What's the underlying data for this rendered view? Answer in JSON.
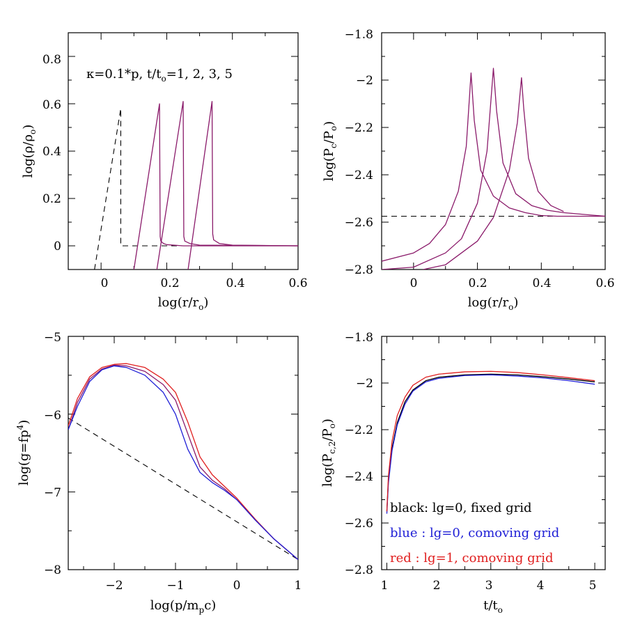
{
  "colors": {
    "black": "#000000",
    "blue": "#1f1fd6",
    "red": "#e01f1f",
    "purple": "#8a1a6a",
    "gray": "#555555"
  },
  "panels": {
    "top_left": {
      "xlabel": "log(r/r",
      "xlabel_sub": "o",
      "xlabel_end": ")",
      "ylabel": "log(ρ/ρ",
      "ylabel_sub": "o",
      "ylabel_end": ")",
      "annotation": "κ=0.1*p,  t/t",
      "annotation_sub": "o",
      "annotation_end": "=1,  2,  3,  5",
      "xticks": [
        "0",
        "0.2",
        "0.4",
        "0.6"
      ],
      "yticks": [
        "0",
        "0.2",
        "0.4",
        "0.6",
        "0.8"
      ]
    },
    "top_right": {
      "xlabel": "log(r/r",
      "xlabel_sub": "o",
      "xlabel_end": ")",
      "ylabel": "log(P",
      "ylabel_sub": "c",
      "ylabel_mid": "/P",
      "ylabel_sub2": "o",
      "ylabel_end": ")",
      "xticks": [
        "0",
        "0.2",
        "0.4",
        "0.6"
      ],
      "yticks": [
        "−2.8",
        "−2.6",
        "−2.4",
        "−2.2",
        "−2",
        "−1.8"
      ]
    },
    "bottom_left": {
      "xlabel": "log(p/m",
      "xlabel_sub": "p",
      "xlabel_end": "c)",
      "ylabel": "log(g=fp",
      "ylabel_sup": "4",
      "ylabel_end": ")",
      "xticks": [
        "−2",
        "−1",
        "0",
        "1"
      ],
      "yticks": [
        "−8",
        "−7",
        "−6",
        "−5"
      ]
    },
    "bottom_right": {
      "xlabel": "t/t",
      "xlabel_sub": "o",
      "ylabel": "log(P",
      "ylabel_sub": "c,2",
      "ylabel_mid": "/P",
      "ylabel_sub2": "o",
      "ylabel_end": ")",
      "xticks": [
        "1",
        "2",
        "3",
        "4",
        "5"
      ],
      "yticks": [
        "−2.8",
        "−2.6",
        "−2.4",
        "−2.2",
        "−2",
        "−1.8"
      ],
      "legend": [
        {
          "text": "black:  lg=0,  fixed grid",
          "color": "#000000"
        },
        {
          "text": "blue  :  lg=0,  comoving grid",
          "color": "#1f1fd6"
        },
        {
          "text": "red   :  lg=1,  comoving grid",
          "color": "#e01f1f"
        }
      ]
    }
  },
  "chart_data": [
    {
      "type": "line",
      "xlabel": "log(r/ro)",
      "ylabel": "log(ρ/ρo)",
      "xlim": [
        -0.1,
        0.6
      ],
      "ylim": [
        -0.1,
        0.9
      ],
      "annotation": "κ=0.1*p, t/to=1, 2, 3, 5",
      "series": [
        {
          "style": "dashed",
          "color": "black",
          "x": [
            -0.02,
            0.06,
            0.06,
            0.6
          ],
          "y": [
            -0.1,
            0.58,
            0.0,
            0.0
          ]
        },
        {
          "x": [
            0.1,
            0.178,
            0.18,
            0.182,
            0.19,
            0.2,
            0.25,
            0.6
          ],
          "y": [
            -0.1,
            0.6,
            0.04,
            0.02,
            0.01,
            0.005,
            0.0,
            0.0
          ]
        },
        {
          "x": [
            0.17,
            0.25,
            0.252,
            0.255,
            0.27,
            0.3,
            0.6
          ],
          "y": [
            -0.1,
            0.61,
            0.04,
            0.02,
            0.01,
            0.003,
            0.0
          ]
        },
        {
          "x": [
            0.265,
            0.338,
            0.34,
            0.343,
            0.36,
            0.4,
            0.6
          ],
          "y": [
            -0.1,
            0.61,
            0.05,
            0.025,
            0.01,
            0.003,
            0.0
          ]
        }
      ]
    },
    {
      "type": "line",
      "xlabel": "log(r/ro)",
      "ylabel": "log(Pc/Po)",
      "xlim": [
        -0.1,
        0.6
      ],
      "ylim": [
        -2.8,
        -1.8
      ],
      "series": [
        {
          "style": "dashed",
          "color": "black",
          "x": [
            -0.1,
            0.6
          ],
          "y": [
            -2.575,
            -2.575
          ]
        },
        {
          "x": [
            -0.1,
            0.0,
            0.05,
            0.1,
            0.14,
            0.165,
            0.18,
            0.19,
            0.21,
            0.25,
            0.3,
            0.35,
            0.4,
            0.45,
            0.6
          ],
          "y": [
            -2.765,
            -2.73,
            -2.69,
            -2.61,
            -2.47,
            -2.28,
            -1.97,
            -2.17,
            -2.38,
            -2.49,
            -2.54,
            -2.56,
            -2.572,
            -2.575,
            -2.575
          ]
        },
        {
          "x": [
            -0.1,
            0.0,
            0.1,
            0.15,
            0.2,
            0.23,
            0.25,
            0.26,
            0.28,
            0.32,
            0.37,
            0.42,
            0.47,
            0.6
          ],
          "y": [
            -2.8,
            -2.79,
            -2.73,
            -2.67,
            -2.52,
            -2.3,
            -1.95,
            -2.13,
            -2.35,
            -2.48,
            -2.53,
            -2.55,
            -2.56,
            -2.575
          ]
        },
        {
          "x": [
            0.03,
            0.1,
            0.2,
            0.25,
            0.3,
            0.325,
            0.338,
            0.345,
            0.36,
            0.39,
            0.43,
            0.47
          ],
          "y": [
            -2.8,
            -2.78,
            -2.68,
            -2.58,
            -2.38,
            -2.18,
            -1.99,
            -2.12,
            -2.33,
            -2.47,
            -2.53,
            -2.555
          ]
        }
      ]
    },
    {
      "type": "line",
      "xlabel": "log(p/mpc)",
      "ylabel": "log(g=fp4)",
      "xlim": [
        -2.75,
        1.0
      ],
      "ylim": [
        -8.0,
        -5.0
      ],
      "series": [
        {
          "style": "dashed",
          "color": "black",
          "x": [
            -2.75,
            1.0
          ],
          "y": [
            -6.05,
            -7.87
          ]
        },
        {
          "x": [
            -2.75,
            -2.6,
            -2.4,
            -2.2,
            -2.0,
            -1.8,
            -1.5,
            -1.2,
            -1.0,
            -0.8,
            -0.6,
            -0.4,
            -0.2,
            0.0,
            0.3,
            0.6,
            1.0
          ],
          "y": [
            -6.15,
            -5.8,
            -5.52,
            -5.4,
            -5.36,
            -5.35,
            -5.4,
            -5.55,
            -5.72,
            -6.1,
            -6.55,
            -6.78,
            -6.93,
            -7.08,
            -7.35,
            -7.6,
            -7.87
          ]
        },
        {
          "x": [
            -2.75,
            -2.6,
            -2.4,
            -2.2,
            -2.0,
            -1.8,
            -1.5,
            -1.2,
            -1.0,
            -0.8,
            -0.6,
            -0.4,
            -0.2,
            0.0,
            0.3,
            0.6,
            1.0
          ],
          "y": [
            -6.2,
            -5.85,
            -5.55,
            -5.42,
            -5.37,
            -5.38,
            -5.45,
            -5.62,
            -5.82,
            -6.25,
            -6.68,
            -6.85,
            -6.96,
            -7.1,
            -7.36,
            -7.6,
            -7.87
          ]
        },
        {
          "x": [
            -2.75,
            -2.6,
            -2.4,
            -2.2,
            -2.0,
            -1.8,
            -1.5,
            -1.2,
            -1.0,
            -0.8,
            -0.6,
            -0.4,
            -0.2,
            0.0,
            0.3,
            0.6,
            1.0
          ],
          "y": [
            -6.2,
            -5.9,
            -5.58,
            -5.43,
            -5.38,
            -5.4,
            -5.5,
            -5.72,
            -6.0,
            -6.45,
            -6.75,
            -6.88,
            -6.98,
            -7.1,
            -7.36,
            -7.6,
            -7.87
          ]
        }
      ]
    },
    {
      "type": "line",
      "xlabel": "t/to",
      "ylabel": "log(Pc,2/Po)",
      "xlim": [
        0.9,
        5.2
      ],
      "ylim": [
        -2.8,
        -1.8
      ],
      "series": [
        {
          "name": "black: lg=0, fixed grid",
          "color": "black",
          "x": [
            1.0,
            1.03,
            1.1,
            1.2,
            1.35,
            1.5,
            1.75,
            2.0,
            2.5,
            3.0,
            3.5,
            4.0,
            4.5,
            5.0
          ],
          "y": [
            -2.55,
            -2.42,
            -2.28,
            -2.17,
            -2.08,
            -2.03,
            -1.99,
            -1.975,
            -1.965,
            -1.962,
            -1.965,
            -1.973,
            -1.983,
            -1.995
          ]
        },
        {
          "name": "blue : lg=0, comoving grid",
          "color": "blue",
          "x": [
            1.0,
            1.03,
            1.1,
            1.2,
            1.35,
            1.5,
            1.75,
            2.0,
            2.5,
            3.0,
            3.5,
            4.0,
            4.5,
            5.0
          ],
          "y": [
            -2.56,
            -2.43,
            -2.29,
            -2.18,
            -2.09,
            -2.035,
            -1.995,
            -1.98,
            -1.968,
            -1.965,
            -1.97,
            -1.978,
            -1.99,
            -2.005
          ]
        },
        {
          "name": "red : lg=1, comoving grid",
          "color": "red",
          "x": [
            1.0,
            1.03,
            1.1,
            1.2,
            1.35,
            1.5,
            1.75,
            2.0,
            2.5,
            3.0,
            3.5,
            4.0,
            4.5,
            5.0
          ],
          "y": [
            -2.55,
            -2.4,
            -2.25,
            -2.14,
            -2.06,
            -2.01,
            -1.975,
            -1.962,
            -1.952,
            -1.95,
            -1.955,
            -1.965,
            -1.977,
            -1.99
          ]
        }
      ]
    }
  ]
}
